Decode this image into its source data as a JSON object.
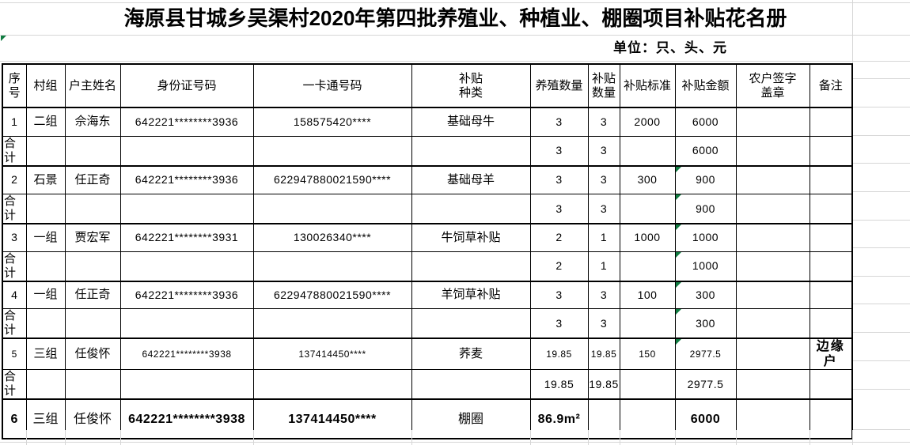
{
  "title": "海原县甘城乡吴渠村2020年第四批养殖业、种植业、棚圈项目补贴花名册",
  "unit_note": "单位：只、头、元",
  "indicators": {
    "unit_cell_flag": true,
    "flag_color": "#107c41",
    "grid_color": "#d6d6d6",
    "border_color": "#000000"
  },
  "table": {
    "headers": [
      "序\n号",
      "村组",
      "户主姓名",
      "身份证号码",
      "一卡通号码",
      "补贴\n种类",
      "养殖数量",
      "补贴\n数量",
      "补贴标准",
      "补贴金额",
      "农户签字\n盖章",
      "备注"
    ],
    "rows": [
      {
        "type": "data",
        "amount_flag": false,
        "cells": [
          "1",
          "二组",
          "佘海东",
          "642221********3936",
          "158575420****",
          "基础母牛",
          "3",
          "3",
          "2000",
          "6000",
          "",
          ""
        ]
      },
      {
        "type": "subtotal",
        "amount_flag": false,
        "cells": [
          "合计",
          "",
          "",
          "",
          "",
          "",
          "3",
          "3",
          "",
          "6000",
          "",
          ""
        ]
      },
      {
        "type": "data",
        "amount_flag": true,
        "cells": [
          "2",
          "石景",
          "任正奇",
          "642221********3936",
          "622947880021590****",
          "基础母羊",
          "3",
          "3",
          "300",
          "900",
          "",
          ""
        ]
      },
      {
        "type": "subtotal",
        "amount_flag": true,
        "cells": [
          "合计",
          "",
          "",
          "",
          "",
          "",
          "3",
          "3",
          "",
          "900",
          "",
          ""
        ]
      },
      {
        "type": "data",
        "amount_flag": true,
        "cells": [
          "3",
          "一组",
          "贾宏军",
          "642221********3931",
          "130026340****",
          "牛饲草补贴",
          "2",
          "1",
          "1000",
          "1000",
          "",
          ""
        ]
      },
      {
        "type": "subtotal",
        "amount_flag": true,
        "cells": [
          "合计",
          "",
          "",
          "",
          "",
          "",
          "2",
          "1",
          "",
          "1000",
          "",
          ""
        ]
      },
      {
        "type": "data",
        "amount_flag": true,
        "cells": [
          "4",
          "一组",
          "任正奇",
          "642221********3936",
          "622947880021590****",
          "羊饲草补贴",
          "3",
          "3",
          "100",
          "300",
          "",
          ""
        ]
      },
      {
        "type": "subtotal",
        "amount_flag": true,
        "cells": [
          "合计",
          "",
          "",
          "",
          "",
          "",
          "3",
          "3",
          "",
          "300",
          "",
          ""
        ]
      },
      {
        "type": "data",
        "amount_flag": true,
        "cells": [
          "5",
          "三组",
          "任俊怀",
          "642221********3938",
          "137414450****",
          "荞麦",
          "19.85",
          "19.85",
          "150",
          "2977.5",
          "",
          "边缘户"
        ]
      },
      {
        "type": "subtotal",
        "amount_flag": false,
        "cells": [
          "合计",
          "",
          "",
          "",
          "",
          "",
          "19.85",
          "19.85",
          "",
          "2977.5",
          "",
          ""
        ]
      },
      {
        "type": "data",
        "amount_flag": false,
        "cells": [
          "6",
          "三组",
          "任俊怀",
          "642221********3938",
          "137414450****",
          "棚圈",
          "86.9m²",
          "",
          "",
          "6000",
          "",
          ""
        ]
      }
    ]
  }
}
